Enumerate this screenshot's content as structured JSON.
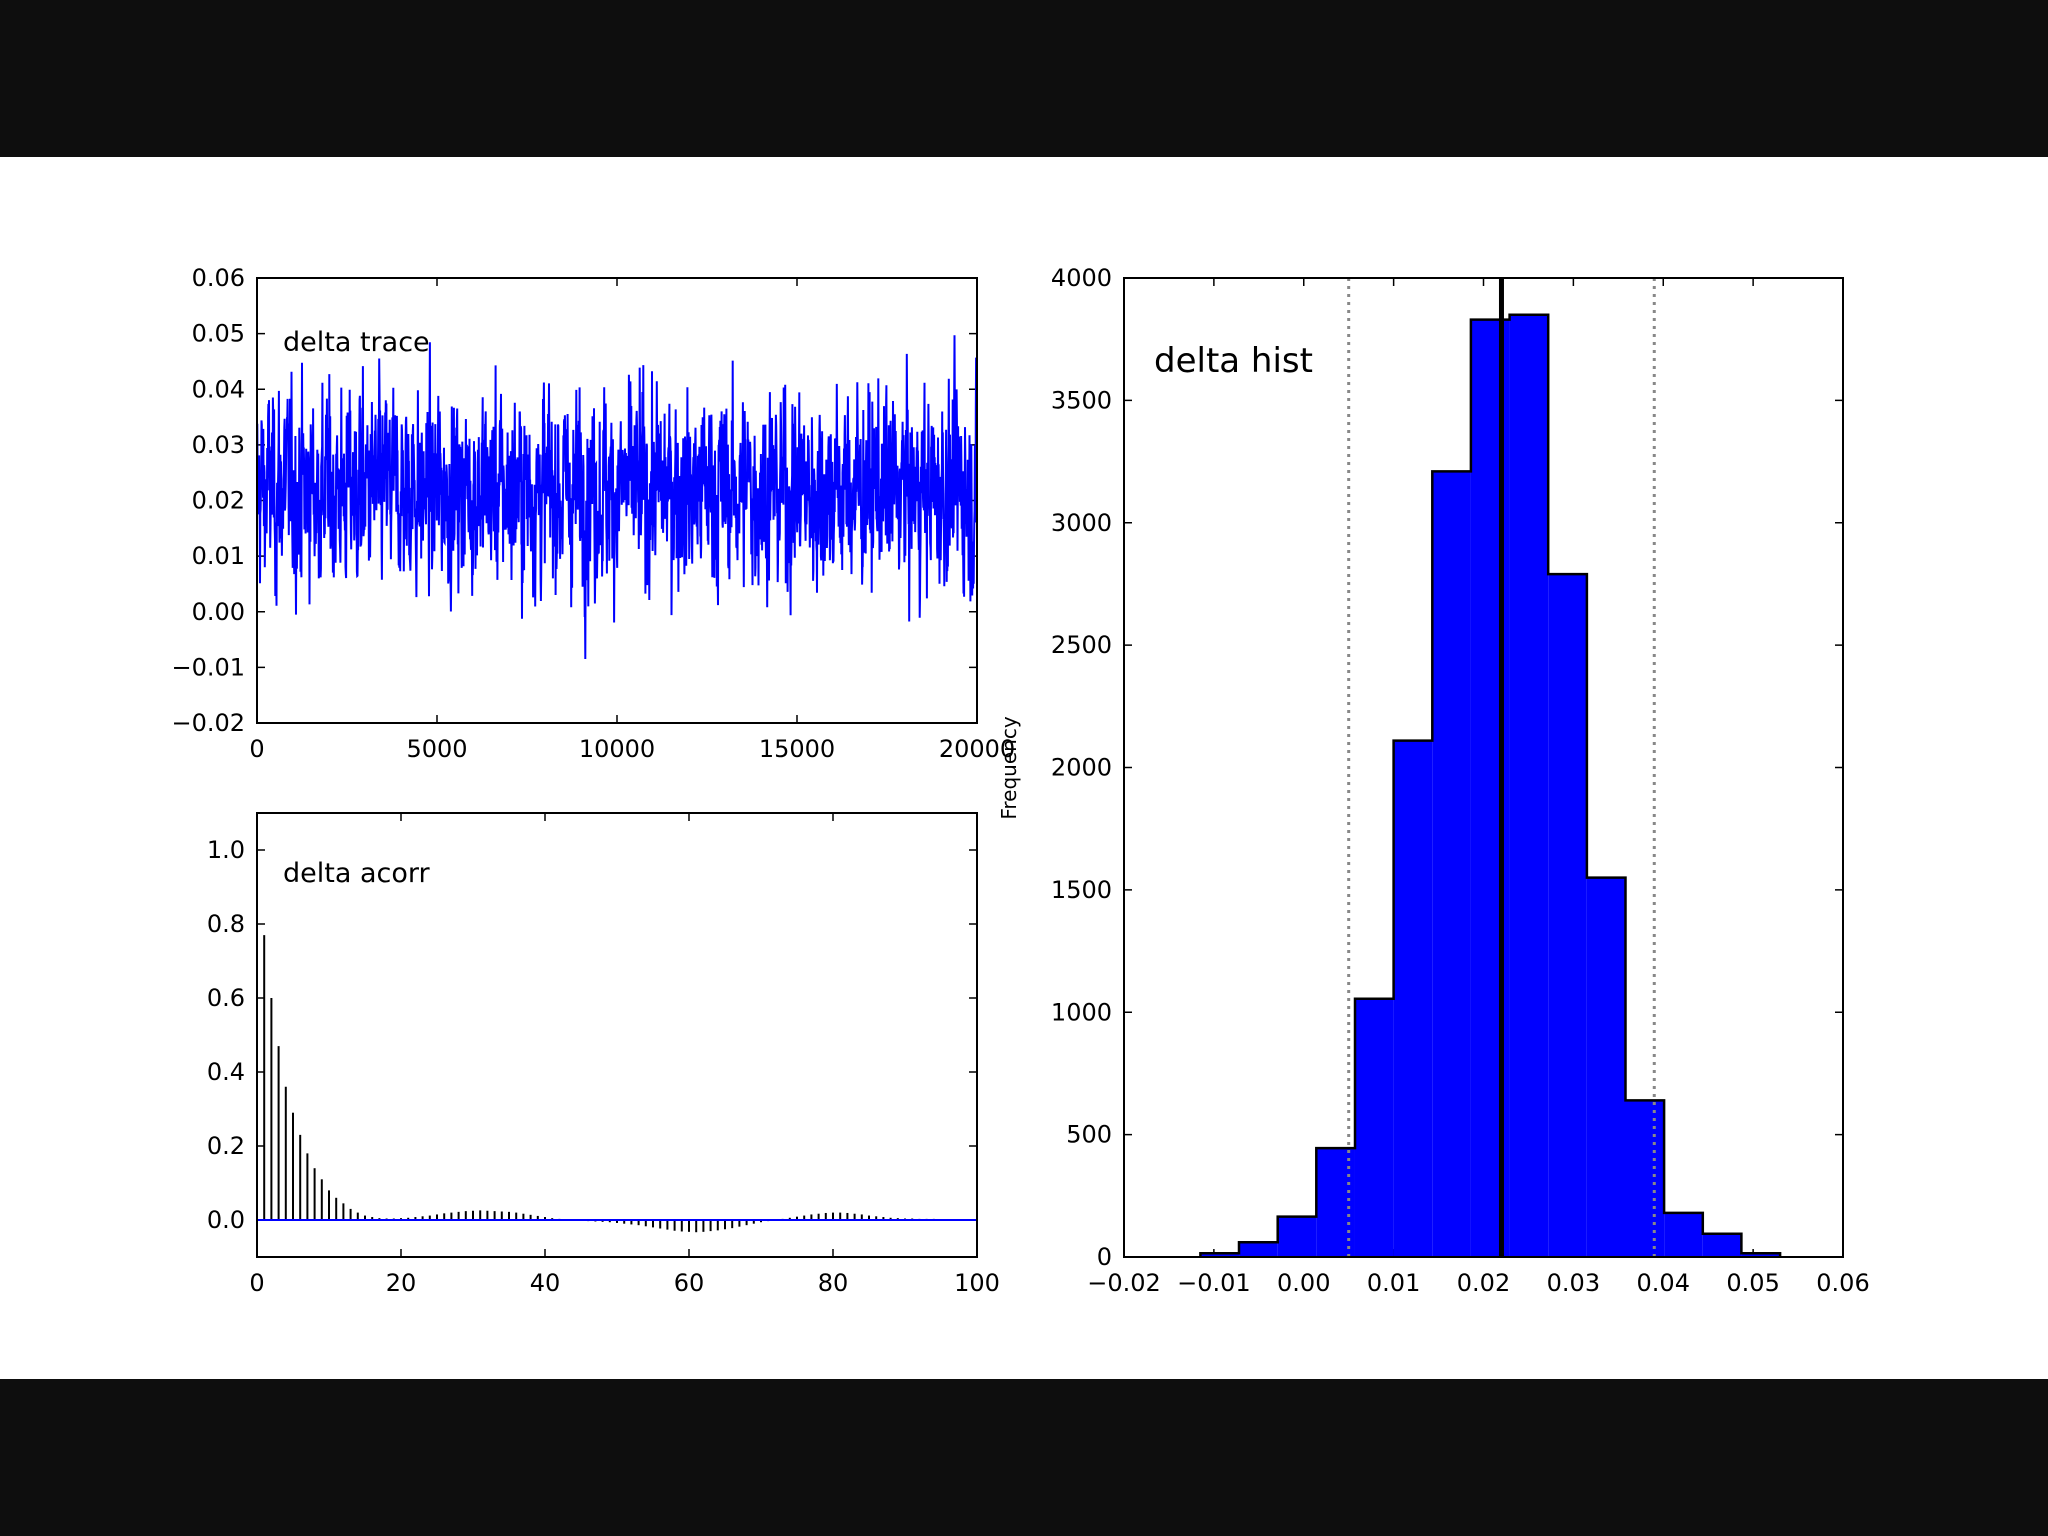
{
  "chart_data": [
    {
      "type": "line",
      "title": "delta trace",
      "xlim": [
        0,
        20000
      ],
      "ylim": [
        -0.02,
        0.06
      ],
      "xticks": [
        0,
        5000,
        10000,
        15000,
        20000
      ],
      "xtick_labels": [
        "0",
        "5000",
        "10000",
        "15000",
        "20000"
      ],
      "yticks": [
        -0.02,
        -0.01,
        0.0,
        0.01,
        0.02,
        0.03,
        0.04,
        0.05,
        0.06
      ],
      "ytick_labels": [
        "−0.02",
        "−0.01",
        "0.00",
        "0.01",
        "0.02",
        "0.03",
        "0.04",
        "0.05",
        "0.06"
      ],
      "series": [
        {
          "color": "#0000ff",
          "n_samples": 20000,
          "mean": 0.022,
          "std": 0.0085,
          "max": 0.053,
          "min": -0.011
        }
      ]
    },
    {
      "type": "bar",
      "title": "delta acorr",
      "xlim": [
        0,
        100
      ],
      "ylim": [
        -0.1,
        1.1
      ],
      "xticks": [
        0,
        20,
        40,
        60,
        80,
        100
      ],
      "xtick_labels": [
        "0",
        "20",
        "40",
        "60",
        "80",
        "100"
      ],
      "yticks": [
        0.0,
        0.2,
        0.4,
        0.6,
        0.8,
        1.0
      ],
      "ytick_labels": [
        "0.0",
        "0.2",
        "0.4",
        "0.6",
        "0.8",
        "1.0"
      ],
      "lags": [
        1,
        2,
        3,
        4,
        5,
        6,
        7,
        8,
        9,
        10,
        11,
        12,
        13,
        14,
        15,
        16,
        17,
        18,
        19,
        20,
        21,
        22,
        23,
        24,
        25,
        26,
        27,
        28,
        29,
        30,
        31,
        32,
        33,
        34,
        35,
        36,
        37,
        38,
        39,
        40,
        41,
        42,
        43,
        44,
        45,
        46,
        47,
        48,
        49,
        50,
        51,
        52,
        53,
        54,
        55,
        56,
        57,
        58,
        59,
        60,
        61,
        62,
        63,
        64,
        65,
        66,
        67,
        68,
        69,
        70,
        71,
        72,
        73,
        74,
        75,
        76,
        77,
        78,
        79,
        80,
        81,
        82,
        83,
        84,
        85,
        86,
        87,
        88,
        89,
        90,
        91,
        92,
        93,
        94,
        95,
        96,
        97,
        98,
        99,
        100
      ],
      "values": [
        0.77,
        0.6,
        0.47,
        0.36,
        0.29,
        0.23,
        0.18,
        0.14,
        0.11,
        0.08,
        0.06,
        0.045,
        0.03,
        0.02,
        0.012,
        0.008,
        0.005,
        0.004,
        0.004,
        0.005,
        0.006,
        0.008,
        0.01,
        0.012,
        0.015,
        0.018,
        0.02,
        0.022,
        0.024,
        0.025,
        0.026,
        0.025,
        0.024,
        0.023,
        0.022,
        0.02,
        0.017,
        0.014,
        0.011,
        0.008,
        0.005,
        0.003,
        0.001,
        0.0,
        -0.002,
        -0.003,
        -0.004,
        -0.005,
        -0.006,
        -0.008,
        -0.01,
        -0.012,
        -0.014,
        -0.017,
        -0.02,
        -0.023,
        -0.026,
        -0.029,
        -0.031,
        -0.032,
        -0.033,
        -0.032,
        -0.03,
        -0.028,
        -0.025,
        -0.022,
        -0.018,
        -0.014,
        -0.01,
        -0.006,
        -0.003,
        0.0,
        0.003,
        0.006,
        0.009,
        0.012,
        0.015,
        0.017,
        0.019,
        0.02,
        0.02,
        0.019,
        0.017,
        0.015,
        0.012,
        0.01,
        0.008,
        0.006,
        0.005,
        0.004,
        0.004,
        0.003,
        0.003,
        0.003,
        0.002,
        0.002,
        0.002,
        0.002,
        0.002,
        0.002
      ],
      "baseline_color": "#0000ff"
    },
    {
      "type": "bar",
      "title": "delta hist",
      "ylabel": "Frequency",
      "xlim": [
        -0.02,
        0.06
      ],
      "ylim": [
        0,
        4000
      ],
      "xticks": [
        -0.02,
        -0.01,
        0.0,
        0.01,
        0.02,
        0.03,
        0.04,
        0.05,
        0.06
      ],
      "xtick_labels": [
        "−0.02",
        "−0.01",
        "0.00",
        "0.01",
        "0.02",
        "0.03",
        "0.04",
        "0.05",
        "0.06"
      ],
      "yticks": [
        0,
        500,
        1000,
        1500,
        2000,
        2500,
        3000,
        3500,
        4000
      ],
      "ytick_labels": [
        "0",
        "500",
        "1000",
        "1500",
        "2000",
        "2500",
        "3000",
        "3500",
        "4000"
      ],
      "bin_edges": [
        -0.0115,
        -0.0072,
        -0.0029,
        0.0014,
        0.0057,
        0.01,
        0.0143,
        0.0186,
        0.0229,
        0.0272,
        0.0315,
        0.0358,
        0.0401,
        0.0444,
        0.0487,
        0.053
      ],
      "counts": [
        15,
        60,
        165,
        445,
        1055,
        2110,
        3210,
        3830,
        3850,
        2790,
        1550,
        640,
        180,
        95,
        15
      ],
      "bar_color": "#0000ff",
      "mean": 0.022,
      "hpd_lower": 0.005,
      "hpd_upper": 0.039
    }
  ]
}
